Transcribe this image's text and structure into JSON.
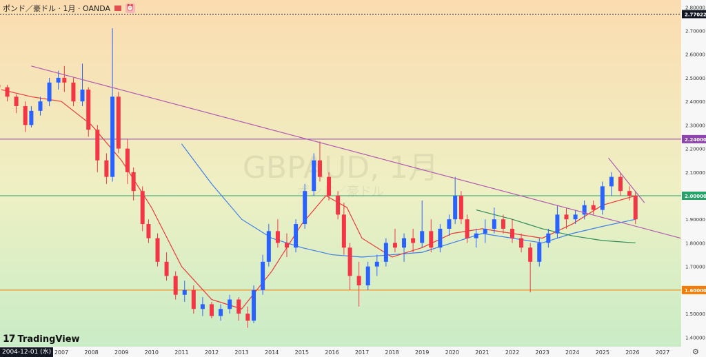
{
  "header": {
    "title": "ポンド／豪ドル · 1月 · OANDA",
    "bell_icon": "bell-icon"
  },
  "watermark": {
    "main": "GBPAUD, 1月",
    "sub": "ポンド／豪ドル"
  },
  "logo": {
    "text": "TradingView",
    "mark": "17"
  },
  "crosshair_date": "2004-12-01 (水)",
  "colors": {
    "up": "#2962ff",
    "down": "#f23645",
    "ma_short": "#e83a3a",
    "ma_long": "#3e7ee8",
    "ma_green": "#2e8b57",
    "trendline": "#b05ab0",
    "hline_purple": "#8e44ad",
    "hline_green": "#26a269",
    "hline_orange": "#f57c00",
    "price_tag_bg": "#131722"
  },
  "chart_data": {
    "type": "candlestick",
    "symbol": "GBPAUD",
    "timeframe": "1月",
    "source": "OANDA",
    "x_ticks": [
      "2007",
      "2008",
      "2009",
      "2010",
      "2011",
      "2012",
      "2013",
      "2014",
      "2015",
      "2016",
      "2017",
      "2018",
      "2019",
      "2020",
      "2021",
      "2022",
      "2023",
      "2024",
      "2025",
      "2026",
      "2027"
    ],
    "y_ticks": [
      "2.80000",
      "2.70000",
      "2.60000",
      "2.50000",
      "2.40000",
      "2.30000",
      "2.20000",
      "2.10000",
      "2.00000",
      "1.90000",
      "1.80000",
      "1.70000",
      "1.60000",
      "1.50000",
      "1.40000"
    ],
    "ylim": [
      1.36,
      2.83
    ],
    "price_tags": [
      {
        "label": "2.77022",
        "value": 2.77022,
        "color": "#131722",
        "line": "dashed"
      },
      {
        "label": "2.24000",
        "value": 2.24,
        "color": "#8e44ad",
        "line": "solid"
      },
      {
        "label": "2.00000",
        "value": 2.0,
        "color": "#26a269",
        "line": "solid"
      },
      {
        "label": "1.60000",
        "value": 1.6,
        "color": "#f57c00",
        "line": "solid"
      }
    ],
    "trendlines": [
      {
        "from": [
          2006.0,
          2.55
        ],
        "to": [
          2027.6,
          1.82
        ],
        "color": "#b05ab0"
      },
      {
        "from": [
          2025.2,
          2.16
        ],
        "to": [
          2026.4,
          1.97
        ],
        "color": "#b05ab0"
      }
    ],
    "candles": [
      [
        2004.9,
        2.47,
        2.48,
        2.44,
        2.46
      ],
      [
        2005.2,
        2.46,
        2.47,
        2.4,
        2.42
      ],
      [
        2005.5,
        2.42,
        2.43,
        2.35,
        2.38
      ],
      [
        2005.8,
        2.38,
        2.4,
        2.27,
        2.3
      ],
      [
        2006.0,
        2.3,
        2.38,
        2.29,
        2.36
      ],
      [
        2006.3,
        2.36,
        2.42,
        2.34,
        2.4
      ],
      [
        2006.6,
        2.4,
        2.5,
        2.38,
        2.48
      ],
      [
        2006.9,
        2.48,
        2.53,
        2.45,
        2.5
      ],
      [
        2007.1,
        2.5,
        2.55,
        2.44,
        2.48
      ],
      [
        2007.4,
        2.48,
        2.5,
        2.38,
        2.4
      ],
      [
        2007.7,
        2.4,
        2.56,
        2.38,
        2.45
      ],
      [
        2007.9,
        2.45,
        2.46,
        2.25,
        2.28
      ],
      [
        2008.2,
        2.28,
        2.3,
        2.1,
        2.15
      ],
      [
        2008.5,
        2.15,
        2.18,
        2.05,
        2.08
      ],
      [
        2008.7,
        2.08,
        2.71,
        2.06,
        2.42
      ],
      [
        2008.9,
        2.42,
        2.44,
        2.18,
        2.2
      ],
      [
        2009.2,
        2.2,
        2.24,
        2.05,
        2.1
      ],
      [
        2009.4,
        2.1,
        2.12,
        1.98,
        2.02
      ],
      [
        2009.7,
        2.02,
        2.04,
        1.85,
        1.88
      ],
      [
        2009.9,
        1.88,
        1.9,
        1.8,
        1.82
      ],
      [
        2010.2,
        1.82,
        1.84,
        1.7,
        1.72
      ],
      [
        2010.5,
        1.72,
        1.76,
        1.64,
        1.66
      ],
      [
        2010.8,
        1.66,
        1.68,
        1.56,
        1.58
      ],
      [
        2011.1,
        1.58,
        1.64,
        1.55,
        1.6
      ],
      [
        2011.4,
        1.6,
        1.62,
        1.5,
        1.52
      ],
      [
        2011.7,
        1.52,
        1.57,
        1.49,
        1.54
      ],
      [
        2012.0,
        1.54,
        1.55,
        1.48,
        1.49
      ],
      [
        2012.3,
        1.49,
        1.54,
        1.47,
        1.52
      ],
      [
        2012.6,
        1.52,
        1.58,
        1.5,
        1.56
      ],
      [
        2012.9,
        1.56,
        1.57,
        1.47,
        1.5
      ],
      [
        2013.2,
        1.5,
        1.53,
        1.44,
        1.47
      ],
      [
        2013.4,
        1.47,
        1.62,
        1.46,
        1.6
      ],
      [
        2013.7,
        1.6,
        1.75,
        1.58,
        1.72
      ],
      [
        2013.9,
        1.72,
        1.88,
        1.7,
        1.85
      ],
      [
        2014.2,
        1.85,
        1.9,
        1.78,
        1.8
      ],
      [
        2014.5,
        1.8,
        1.84,
        1.74,
        1.78
      ],
      [
        2014.8,
        1.78,
        1.9,
        1.76,
        1.88
      ],
      [
        2015.1,
        1.88,
        2.05,
        1.86,
        2.02
      ],
      [
        2015.4,
        2.02,
        2.18,
        2.0,
        2.15
      ],
      [
        2015.6,
        2.15,
        2.23,
        2.06,
        2.08
      ],
      [
        2015.9,
        2.08,
        2.1,
        1.98,
        2.0
      ],
      [
        2016.2,
        2.0,
        2.02,
        1.9,
        1.92
      ],
      [
        2016.4,
        1.92,
        1.97,
        1.75,
        1.78
      ],
      [
        2016.6,
        1.78,
        1.8,
        1.6,
        1.66
      ],
      [
        2016.9,
        1.66,
        1.72,
        1.53,
        1.62
      ],
      [
        2017.2,
        1.62,
        1.72,
        1.6,
        1.7
      ],
      [
        2017.5,
        1.7,
        1.75,
        1.66,
        1.72
      ],
      [
        2017.8,
        1.72,
        1.82,
        1.7,
        1.8
      ],
      [
        2018.1,
        1.8,
        1.86,
        1.76,
        1.78
      ],
      [
        2018.4,
        1.78,
        1.84,
        1.72,
        1.82
      ],
      [
        2018.7,
        1.82,
        1.86,
        1.76,
        1.8
      ],
      [
        2019.0,
        1.8,
        1.98,
        1.78,
        1.85
      ],
      [
        2019.3,
        1.85,
        1.9,
        1.76,
        1.78
      ],
      [
        2019.6,
        1.78,
        1.88,
        1.76,
        1.86
      ],
      [
        2019.9,
        1.86,
        1.92,
        1.83,
        1.9
      ],
      [
        2020.1,
        1.9,
        2.08,
        1.88,
        2.0
      ],
      [
        2020.3,
        2.0,
        2.02,
        1.88,
        1.9
      ],
      [
        2020.5,
        1.9,
        1.92,
        1.8,
        1.82
      ],
      [
        2020.8,
        1.82,
        1.86,
        1.78,
        1.84
      ],
      [
        2021.1,
        1.84,
        1.9,
        1.8,
        1.86
      ],
      [
        2021.4,
        1.86,
        1.95,
        1.84,
        1.9
      ],
      [
        2021.7,
        1.9,
        1.92,
        1.84,
        1.86
      ],
      [
        2022.0,
        1.86,
        1.9,
        1.8,
        1.82
      ],
      [
        2022.3,
        1.82,
        1.84,
        1.76,
        1.78
      ],
      [
        2022.6,
        1.78,
        1.8,
        1.59,
        1.72
      ],
      [
        2022.9,
        1.72,
        1.82,
        1.7,
        1.8
      ],
      [
        2023.2,
        1.8,
        1.86,
        1.78,
        1.84
      ],
      [
        2023.5,
        1.84,
        1.96,
        1.82,
        1.92
      ],
      [
        2023.8,
        1.92,
        1.95,
        1.86,
        1.9
      ],
      [
        2024.1,
        1.9,
        1.94,
        1.88,
        1.92
      ],
      [
        2024.4,
        1.92,
        1.98,
        1.9,
        1.96
      ],
      [
        2024.7,
        1.96,
        1.98,
        1.92,
        1.94
      ],
      [
        2025.0,
        1.94,
        2.06,
        1.92,
        2.04
      ],
      [
        2025.3,
        2.04,
        2.1,
        2.0,
        2.08
      ],
      [
        2025.6,
        2.08,
        2.1,
        2.0,
        2.02
      ],
      [
        2025.9,
        2.02,
        2.04,
        1.98,
        2.0
      ],
      [
        2026.1,
        2.0,
        2.02,
        1.88,
        1.9
      ]
    ],
    "ma_short": [
      [
        2005.0,
        2.45
      ],
      [
        2006.0,
        2.42
      ],
      [
        2007.0,
        2.4
      ],
      [
        2008.0,
        2.3
      ],
      [
        2009.0,
        2.15
      ],
      [
        2010.0,
        1.95
      ],
      [
        2011.0,
        1.7
      ],
      [
        2012.0,
        1.56
      ],
      [
        2013.0,
        1.52
      ],
      [
        2014.0,
        1.68
      ],
      [
        2015.0,
        1.88
      ],
      [
        2015.8,
        2.0
      ],
      [
        2016.5,
        1.95
      ],
      [
        2017.0,
        1.82
      ],
      [
        2018.0,
        1.74
      ],
      [
        2019.0,
        1.78
      ],
      [
        2020.0,
        1.84
      ],
      [
        2021.0,
        1.86
      ],
      [
        2022.0,
        1.84
      ],
      [
        2023.0,
        1.82
      ],
      [
        2024.0,
        1.88
      ],
      [
        2025.0,
        1.96
      ],
      [
        2026.1,
        2.0
      ]
    ],
    "ma_long": [
      [
        2011.0,
        2.22
      ],
      [
        2012.0,
        2.05
      ],
      [
        2013.0,
        1.9
      ],
      [
        2014.0,
        1.82
      ],
      [
        2015.0,
        1.78
      ],
      [
        2016.0,
        1.75
      ],
      [
        2017.0,
        1.74
      ],
      [
        2018.0,
        1.75
      ],
      [
        2019.0,
        1.76
      ],
      [
        2020.0,
        1.8
      ],
      [
        2021.0,
        1.84
      ],
      [
        2022.0,
        1.82
      ],
      [
        2023.0,
        1.8
      ],
      [
        2024.0,
        1.84
      ],
      [
        2025.0,
        1.87
      ],
      [
        2026.1,
        1.9
      ]
    ],
    "ma_green": [
      [
        2020.8,
        1.94
      ],
      [
        2022.0,
        1.9
      ],
      [
        2023.0,
        1.86
      ],
      [
        2024.0,
        1.83
      ],
      [
        2025.0,
        1.81
      ],
      [
        2026.1,
        1.8
      ]
    ]
  }
}
